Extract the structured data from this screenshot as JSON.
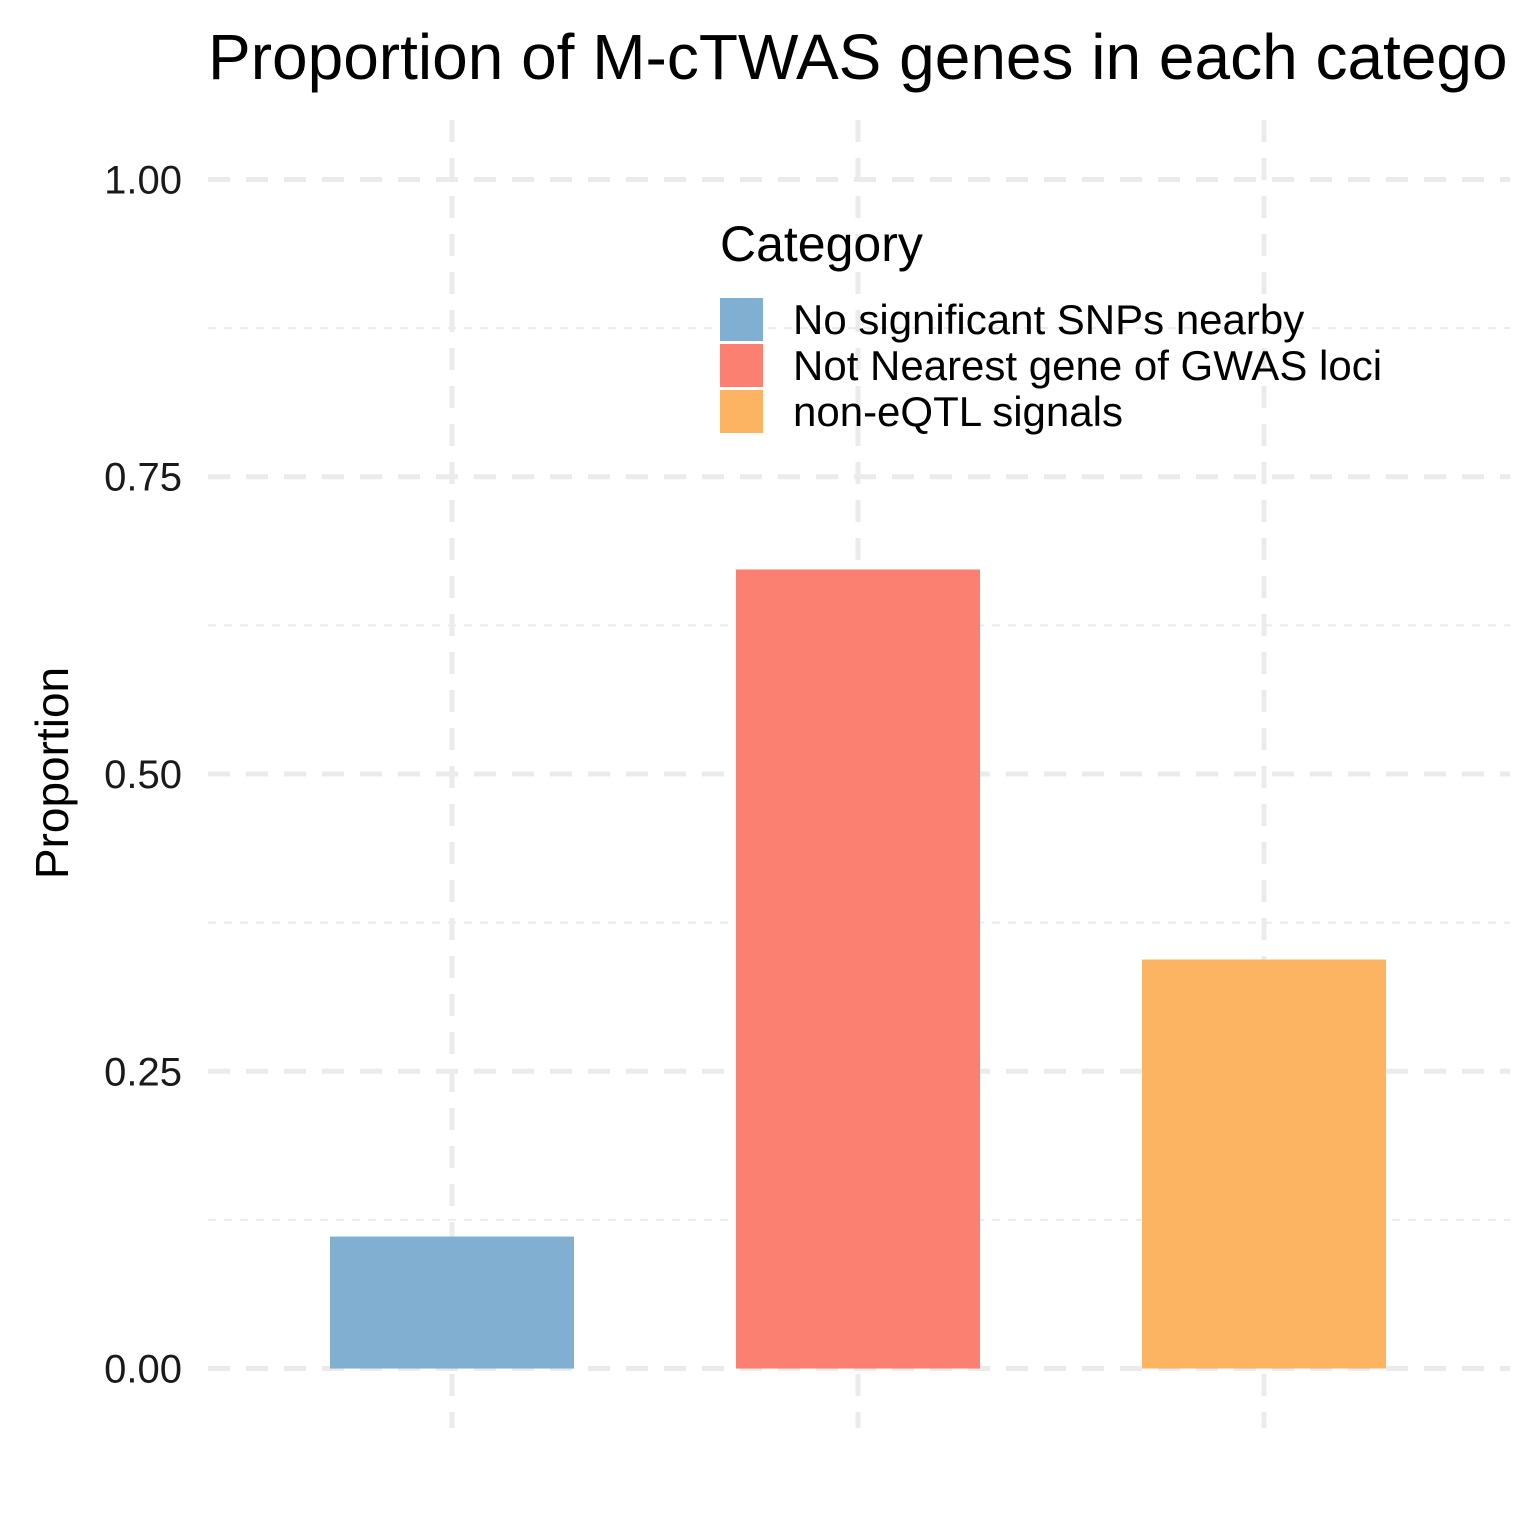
{
  "chart_data": {
    "type": "bar",
    "title": "Proportion of M-cTWAS genes in each catego",
    "ylabel": "Proportion",
    "xlabel": "",
    "categories": [
      "No significant SNPs nearby",
      "Not Nearest gene of GWAS loci",
      "non-eQTL signals"
    ],
    "values": [
      0.111,
      0.672,
      0.344
    ],
    "colors": [
      "#80AFD1",
      "#FB8072",
      "#FDB462"
    ],
    "ylim": [
      -0.05,
      1.05
    ],
    "yticks": [
      0.0,
      0.25,
      0.5,
      0.75,
      1.0
    ],
    "ytick_labels": [
      "0.00",
      "0.25",
      "0.50",
      "0.75",
      "1.00"
    ],
    "yminor": [
      0.125,
      0.375,
      0.625,
      0.875
    ],
    "grid": true,
    "grid_color": "#ebebeb",
    "legend": {
      "title": "Category",
      "placement": "top-right",
      "entries": [
        "No significant SNPs nearby",
        "Not Nearest gene of GWAS loci",
        "non-eQTL signals"
      ]
    }
  }
}
